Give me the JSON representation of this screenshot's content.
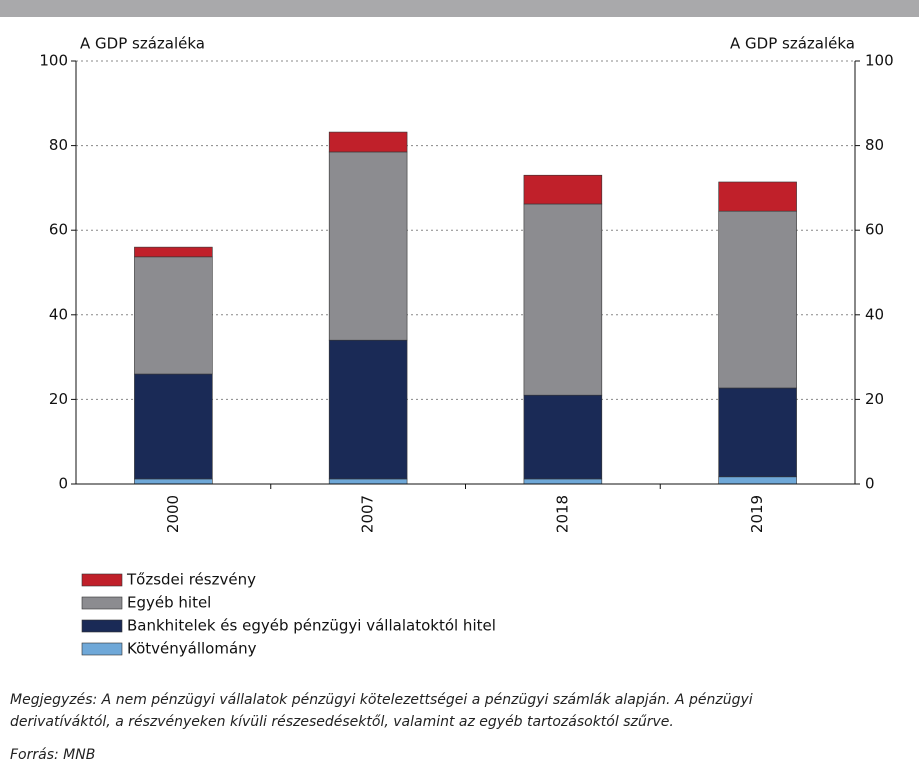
{
  "chart_data": {
    "type": "stacked_bar",
    "y_label": "A GDP százaléka",
    "y2_label": "A GDP százaléka",
    "categories": [
      "2000",
      "2007",
      "2018",
      "2019"
    ],
    "series": [
      {
        "name": "Kötvényállomány",
        "color": "#6fa8d8",
        "values": [
          1.2,
          1.2,
          1.2,
          1.7
        ]
      },
      {
        "name": "Bankhitelek és egyéb pénzügyi vállalatoktól hitel",
        "color": "#1a2a56",
        "values": [
          24.8,
          32.8,
          19.8,
          21.0
        ]
      },
      {
        "name": "Egyéb hitel",
        "color": "#8c8c90",
        "values": [
          27.7,
          44.5,
          45.2,
          41.8
        ]
      },
      {
        "name": "Tőzsdei részvény",
        "color": "#c0202a",
        "values": [
          2.3,
          4.7,
          6.8,
          6.9
        ]
      }
    ],
    "ylim": [
      0,
      100
    ],
    "yticks": [
      0,
      20,
      40,
      60,
      80,
      100
    ],
    "y2lim": [
      0,
      100
    ],
    "y2ticks": [
      0,
      20,
      40,
      60,
      80,
      100
    ],
    "grid": true,
    "note": "Megjegyzés: A nem pénzügyi vállalatok pénzügyi kötelezettségei a pénzügyi számlák alapján. A pénzügyi",
    "note2": "derivatíváktól, a részvényeken kívüli részesedésektől, valamint az egyéb tartozásoktól szűrve.",
    "source": "Forrás: MNB"
  }
}
